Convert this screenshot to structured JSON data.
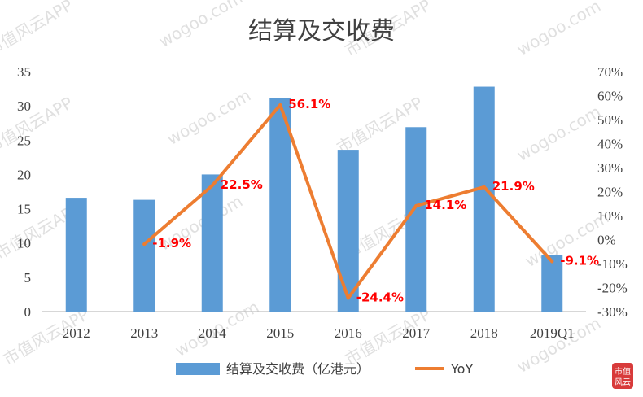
{
  "chart_data": {
    "type": "bar",
    "title": "结算及交收费",
    "categories": [
      "2012",
      "2013",
      "2014",
      "2015",
      "2016",
      "2017",
      "2018",
      "2019Q1"
    ],
    "series": [
      {
        "name": "结算及交收费（亿港元）",
        "type": "bar",
        "axis": "left",
        "values": [
          16.6,
          16.3,
          20.0,
          31.2,
          23.6,
          26.9,
          32.8,
          8.3
        ],
        "color": "#5b9bd5"
      },
      {
        "name": "YoY",
        "type": "line",
        "axis": "right",
        "values": [
          null,
          -1.9,
          22.5,
          56.1,
          -24.4,
          14.1,
          21.9,
          -9.1
        ],
        "labels": [
          "",
          "-1.9%",
          "22.5%",
          "56.1%",
          "-24.4%",
          "14.1%",
          "21.9%",
          "-9.1%"
        ],
        "color": "#ed7d31",
        "label_color": "#ff0000"
      }
    ],
    "y_left": {
      "min": 0,
      "max": 35,
      "step": 5,
      "ticks": [
        "0",
        "5",
        "10",
        "15",
        "20",
        "25",
        "30",
        "35"
      ]
    },
    "y_right": {
      "min": -30,
      "max": 70,
      "step": 10,
      "ticks": [
        "-30%",
        "-20%",
        "-10%",
        "0%",
        "10%",
        "20%",
        "30%",
        "40%",
        "50%",
        "60%",
        "70%"
      ]
    },
    "grid": false,
    "legend_position": "bottom"
  },
  "watermark": {
    "text": "市值风云APP",
    "text_alt": "wogoo.com",
    "seal": "市值风云"
  }
}
